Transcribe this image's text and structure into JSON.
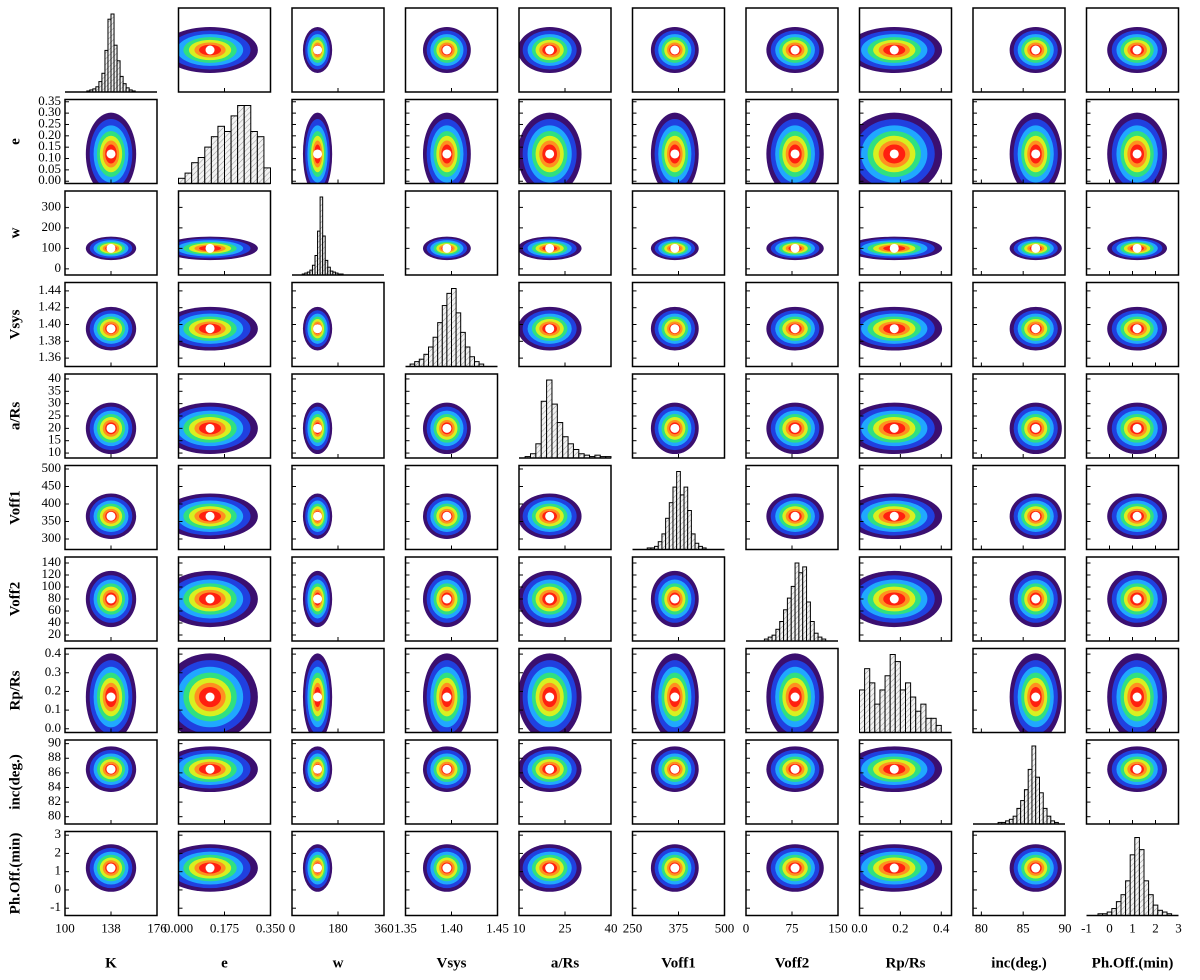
{
  "chart_data": {
    "type": "corner",
    "ring_colors": [
      "#3b0f70",
      "#2040e0",
      "#20a8ff",
      "#30e080",
      "#d8f020",
      "#ff9020",
      "#ff2010"
    ],
    "parameters": [
      {
        "label": "K",
        "xlim": [
          100,
          176
        ],
        "ticks": [
          100,
          138,
          176
        ],
        "best": 138,
        "sd": 8,
        "hist": {
          "bins": [
            118,
            120.5,
            123,
            125.5,
            128,
            130.5,
            133,
            135.5,
            138,
            140.5,
            143,
            145.5,
            148,
            150.5,
            153,
            155.5,
            158
          ],
          "counts": [
            1,
            2,
            3,
            5,
            10,
            18,
            40,
            70,
            75,
            45,
            30,
            15,
            8,
            4,
            2,
            1
          ]
        }
      },
      {
        "label": "e",
        "xlim": [
          0,
          0.35
        ],
        "ticks": [
          {
            "value": 0,
            "label": "0.000"
          },
          0.175,
          {
            "value": 0.35,
            "label": "0.350"
          }
        ],
        "ylim": [
          -0.01,
          0.36
        ],
        "yticks": [
          {
            "value": 0,
            "label": "0.00"
          },
          0.05,
          {
            "value": 0.1,
            "label": "0.10"
          },
          0.15,
          {
            "value": 0.2,
            "label": "0.20"
          },
          0.25,
          {
            "value": 0.3,
            "label": "0.30"
          },
          0.35
        ],
        "best": 0.12,
        "sd": 0.07,
        "hist": {
          "bins": [
            0,
            0.025,
            0.05,
            0.075,
            0.1,
            0.125,
            0.15,
            0.175,
            0.2,
            0.225,
            0.25,
            0.275,
            0.3,
            0.325,
            0.35
          ],
          "counts": [
            2,
            4,
            8,
            10,
            14,
            18,
            22,
            20,
            26,
            30,
            30,
            20,
            18,
            6
          ]
        }
      },
      {
        "label": "w",
        "xlim": [
          0,
          360
        ],
        "ticks": [
          0,
          180,
          360
        ],
        "ylim": [
          -30,
          380
        ],
        "yticks": [
          0,
          100,
          200,
          300
        ],
        "best": 100,
        "sd": 22,
        "hist": {
          "bins": [
            40,
            50,
            60,
            70,
            80,
            90,
            100,
            110,
            120,
            130,
            140,
            150,
            160,
            170,
            180,
            190,
            200
          ],
          "counts": [
            1,
            2,
            3,
            5,
            10,
            20,
            45,
            80,
            40,
            15,
            8,
            4,
            3,
            2,
            1,
            1
          ]
        }
      },
      {
        "label": "Vsys",
        "xlim": [
          1.35,
          1.45
        ],
        "ticks": [
          1.35,
          {
            "value": 1.4,
            "label": "1.40"
          },
          1.45
        ],
        "ylim": [
          1.35,
          1.45
        ],
        "yticks": [
          1.36,
          1.38,
          {
            "value": 1.4,
            "label": "1.40"
          },
          1.42,
          1.44
        ],
        "best": 1.395,
        "sd": 0.01,
        "hist": {
          "bins": [
            1.355,
            1.36,
            1.365,
            1.37,
            1.375,
            1.38,
            1.385,
            1.39,
            1.395,
            1.4,
            1.405,
            1.41,
            1.415,
            1.42,
            1.425,
            1.43,
            1.435
          ],
          "counts": [
            1,
            2,
            3,
            5,
            8,
            12,
            18,
            25,
            30,
            32,
            22,
            14,
            8,
            4,
            2,
            1
          ]
        }
      },
      {
        "label": "a/Rs",
        "xlim": [
          10,
          40
        ],
        "ticks": [
          10,
          25,
          40
        ],
        "ylim": [
          8,
          42
        ],
        "yticks": [
          10,
          15,
          20,
          25,
          30,
          35,
          40
        ],
        "best": 20,
        "sd": 4,
        "hist": {
          "bins": [
            12,
            13.75,
            15.5,
            17.25,
            19,
            20.75,
            22.5,
            24.25,
            26,
            27.75,
            29.5,
            31.25,
            33,
            34.75,
            36.5,
            38.25,
            40
          ],
          "counts": [
            1,
            3,
            10,
            40,
            55,
            38,
            25,
            15,
            10,
            6,
            3,
            2,
            1,
            2,
            1,
            1
          ]
        }
      },
      {
        "label": "Voff1",
        "xlim": [
          250,
          500
        ],
        "ticks": [
          250,
          375,
          500
        ],
        "ylim": [
          270,
          510
        ],
        "yticks": [
          300,
          350,
          400,
          450,
          500
        ],
        "best": 365,
        "sd": 25,
        "hist": {
          "bins": [
            290,
            300,
            310,
            320,
            330,
            340,
            350,
            360,
            370,
            380,
            390,
            400,
            410,
            420,
            430,
            440,
            450
          ],
          "counts": [
            1,
            1,
            2,
            5,
            10,
            20,
            30,
            40,
            50,
            35,
            40,
            25,
            10,
            4,
            2,
            1
          ]
        }
      },
      {
        "label": "Voff2",
        "xlim": [
          0,
          150
        ],
        "ticks": [
          0,
          75,
          150
        ],
        "ylim": [
          10,
          150
        ],
        "yticks": [
          20,
          40,
          60,
          80,
          100,
          120,
          140
        ],
        "best": 80,
        "sd": 18,
        "hist": {
          "bins": [
            30,
            36.25,
            42.5,
            48.75,
            55,
            61.25,
            67.5,
            73.75,
            80,
            86.25,
            92.5,
            98.75,
            105,
            111.25,
            117.5,
            123.75,
            130
          ],
          "counts": [
            1,
            2,
            3,
            6,
            10,
            16,
            22,
            28,
            40,
            35,
            38,
            20,
            10,
            4,
            2,
            1
          ]
        }
      },
      {
        "label": "Rp/Rs",
        "xlim": [
          0,
          0.45
        ],
        "ticks": [
          {
            "value": 0,
            "label": "0.0"
          },
          0.2,
          0.4
        ],
        "ylim": [
          -0.02,
          0.43
        ],
        "yticks": [
          {
            "value": 0,
            "label": "0.0"
          },
          0.1,
          0.2,
          0.3,
          0.4
        ],
        "best": 0.17,
        "sd": 0.09,
        "hist": {
          "bins": [
            0,
            0.025,
            0.05,
            0.075,
            0.1,
            0.125,
            0.15,
            0.175,
            0.2,
            0.225,
            0.25,
            0.275,
            0.3,
            0.325,
            0.35,
            0.375,
            0.4
          ],
          "counts": [
            12,
            18,
            14,
            8,
            12,
            16,
            22,
            20,
            12,
            14,
            10,
            6,
            8,
            4,
            4,
            2
          ]
        }
      },
      {
        "label": "inc(deg.)",
        "xlim": [
          79,
          90
        ],
        "ticks": [
          80,
          85,
          90
        ],
        "ylim": [
          79,
          90.5
        ],
        "yticks": [
          80,
          82,
          84,
          86,
          88,
          90
        ],
        "best": 86.5,
        "sd": 1.2,
        "hist": {
          "bins": [
            82,
            82.45,
            82.9,
            83.35,
            83.8,
            84.25,
            84.7,
            85.15,
            85.6,
            86.05,
            86.5,
            86.95,
            87.4,
            87.85,
            88.3,
            88.75,
            89.2
          ],
          "counts": [
            1,
            1,
            2,
            3,
            5,
            10,
            15,
            22,
            35,
            50,
            30,
            20,
            10,
            5,
            2,
            1
          ]
        }
      },
      {
        "label": "Ph.Off.(min)",
        "xlim": [
          -1,
          3
        ],
        "ticks": [
          -1,
          0,
          1,
          2,
          3
        ],
        "ylim": [
          -1.4,
          3.2
        ],
        "yticks": [
          -1,
          0,
          1,
          2,
          3
        ],
        "best": 1.2,
        "sd": 0.5,
        "hist": {
          "bins": [
            -0.5,
            -0.3,
            -0.1,
            0.1,
            0.3,
            0.5,
            0.7,
            0.9,
            1.1,
            1.3,
            1.5,
            1.7,
            1.9,
            2.1,
            2.3,
            2.5,
            2.7
          ],
          "counts": [
            1,
            1,
            2,
            4,
            8,
            12,
            20,
            35,
            45,
            38,
            20,
            12,
            6,
            3,
            2,
            1
          ]
        }
      }
    ]
  }
}
